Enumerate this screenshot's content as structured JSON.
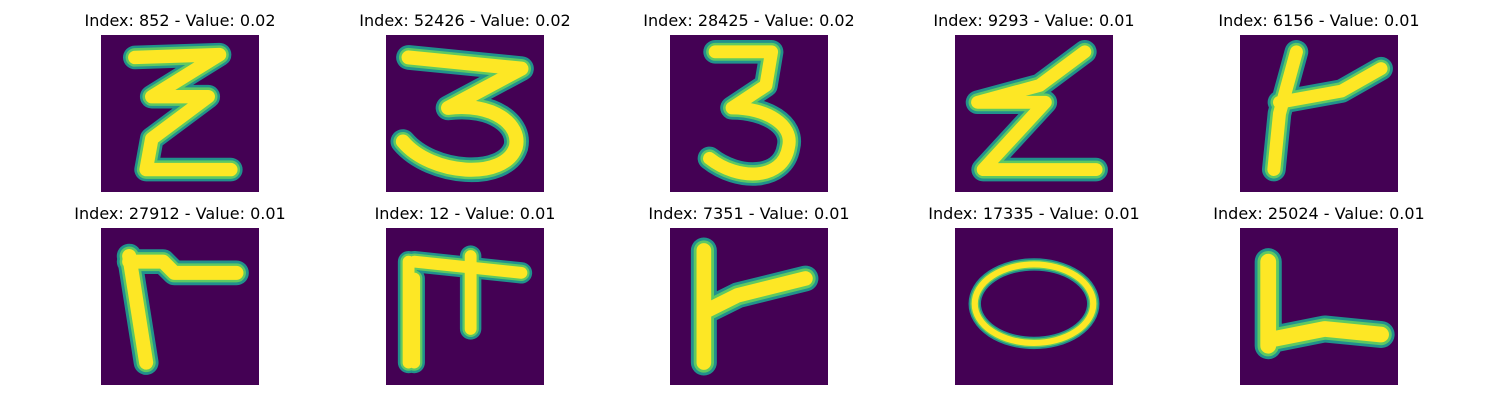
{
  "colors": {
    "background": "#440154",
    "stroke": "#fde725",
    "edge_outer": "#21918c",
    "edge_inner": "#5ec962"
  },
  "panels": [
    {
      "title": "Index: 852 - Value: 0.02",
      "glyph": "z-looped"
    },
    {
      "title": "Index: 52426 - Value: 0.02",
      "glyph": "three-wide"
    },
    {
      "title": "Index: 28425 - Value: 0.02",
      "glyph": "three"
    },
    {
      "title": "Index: 9293 - Value: 0.01",
      "glyph": "z-zigzag"
    },
    {
      "title": "Index: 6156 - Value: 0.01",
      "glyph": "k-like"
    },
    {
      "title": "Index: 27912 - Value: 0.01",
      "glyph": "gamma"
    },
    {
      "title": "Index: 12 - Value: 0.01",
      "glyph": "pi-like"
    },
    {
      "title": "Index: 7351 - Value: 0.01",
      "glyph": "r-like"
    },
    {
      "title": "Index: 17335 - Value: 0.01",
      "glyph": "o"
    },
    {
      "title": "Index: 25024 - Value: 0.01",
      "glyph": "l"
    }
  ]
}
